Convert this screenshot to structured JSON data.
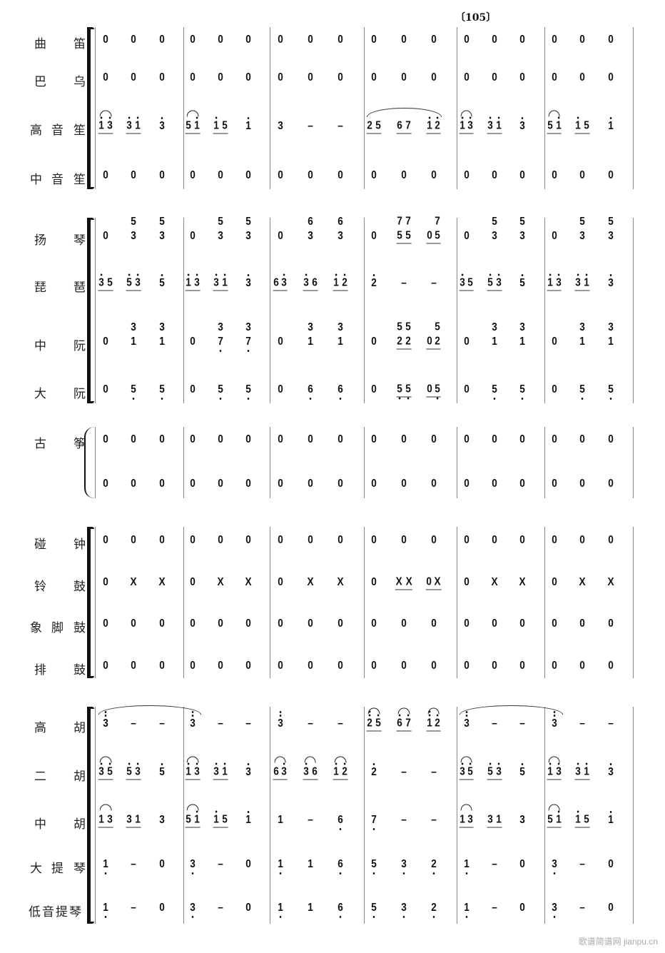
{
  "rehearsal_mark": "〔105〕",
  "watermark": "歌谱简谱网 jianpu.cn",
  "groups": [
    {
      "type": "bracket",
      "rows": [
        0,
        1,
        2,
        3
      ]
    },
    {
      "type": "bracket",
      "rows": [
        4,
        5,
        6,
        7
      ]
    },
    {
      "type": "brace",
      "rows": [
        8,
        9
      ]
    },
    {
      "type": "bracket",
      "rows": [
        10,
        11,
        12,
        13
      ]
    },
    {
      "type": "bracket",
      "rows": [
        14,
        15,
        16,
        17,
        18
      ]
    }
  ],
  "rows": [
    {
      "name": "曲笛",
      "measures": [
        "0 0 0",
        "0 0 0",
        "0 0 0",
        "0 0 0",
        "0 0 0",
        "0 0 0"
      ]
    },
    {
      "name": "巴乌",
      "measures": [
        "0 0 0",
        "0 0 0",
        "0 0 0",
        "0 0 0",
        "0 0 0",
        "0 0 0"
      ]
    },
    {
      "name": "高音笙",
      "measures": [
        "~1'3' 3'1' 3'",
        "~51' 1'5 1'",
        "3 - -",
        "25 67 1'2'",
        "~1'3' 3'1' 3'",
        "~51' 1'5 1'"
      ],
      "slurs": [
        [
          3,
          0,
          3,
          2
        ]
      ]
    },
    {
      "name": "中音笙",
      "measures": [
        "0 0 0",
        "0 0 0",
        "0 0 0",
        "0 0 0",
        "0 0 0",
        "0 0 0"
      ]
    },
    {
      "name": "扬琴",
      "measures": [
        "0 3^5 3^5",
        "0 3^5 3^5",
        "0 3^6 3^6",
        "0 5^75^7 05^7",
        "0 3^5 3^5",
        "0 3^5 3^5"
      ]
    },
    {
      "name": "琵琶",
      "measures": [
        "3'5 5'3' 5'",
        "1'3' 3'1' 3'",
        "63' 3'6 1'2'",
        "2' - -",
        "3'5 5'3' 5'",
        "1'3' 3'1' 3'"
      ]
    },
    {
      "name": "中阮",
      "measures": [
        "0 1^3 1^3",
        "0 7,^3 7,^3",
        "0 1^3 1^3",
        "0 2^52^5 02^5",
        "0 1^3 1^3",
        "0 1^3 1^3"
      ]
    },
    {
      "name": "大阮",
      "measures": [
        "0 5, 5,",
        "0 5, 5,",
        "0 6, 6,",
        "0 5,5, 05,",
        "0 5, 5,",
        "0 5, 5,"
      ]
    },
    {
      "name": "古筝",
      "measures": [
        "0 0 0",
        "0 0 0",
        "0 0 0",
        "0 0 0",
        "0 0 0",
        "0 0 0"
      ]
    },
    {
      "name": "",
      "measures": [
        "0 0 0",
        "0 0 0",
        "0 0 0",
        "0 0 0",
        "0 0 0",
        "0 0 0"
      ]
    },
    {
      "name": "碰钟",
      "measures": [
        "0 0 0",
        "0 0 0",
        "0 0 0",
        "0 0 0",
        "0 0 0",
        "0 0 0"
      ]
    },
    {
      "name": "铃鼓",
      "measures": [
        "0 X X",
        "0 X X",
        "0 X X",
        "0 XX 0X",
        "0 X X",
        "0 X X"
      ]
    },
    {
      "name": "象脚鼓",
      "measures": [
        "0 0 0",
        "0 0 0",
        "0 0 0",
        "0 0 0",
        "0 0 0",
        "0 0 0"
      ]
    },
    {
      "name": "排鼓",
      "measures": [
        "0 0 0",
        "0 0 0",
        "0 0 0",
        "0 0 0",
        "0 0 0",
        "0 0 0"
      ]
    },
    {
      "name": "高胡",
      "measures": [
        "3'' - -",
        "3'' - -",
        "3'' - -",
        "~2''5' ~6'7' ~1''2'",
        "3'' - -",
        "3'' - -"
      ],
      "slurs": [
        [
          0,
          0,
          1,
          0
        ],
        [
          4,
          0,
          5,
          0
        ]
      ]
    },
    {
      "name": "二胡",
      "measures": [
        "~3'5' 5'3' 5'",
        "~1'3' 3'1' 3'",
        "~63' ~3'6 ~1'2'",
        "2' - -",
        "~3'5' 5'3' 5'",
        "~1'3' 3'1' 3'"
      ]
    },
    {
      "name": "中胡",
      "measures": [
        "~13 31 3",
        "~51' 1'5 1'",
        "1 - 6,",
        "7, - -",
        "~13 31 3",
        "~51' 1'5 1'"
      ]
    },
    {
      "name": "大提琴",
      "measures": [
        "1, - 0",
        "3, - 0",
        "1, 1 6,",
        "5, 3, 2,",
        "1, - 0",
        "3, - 0"
      ]
    },
    {
      "name": "低音提琴",
      "measures": [
        "1, - 0",
        "3, - 0",
        "1, 1 6,",
        "5, 3, 2,",
        "1, - 0",
        "3, - 0"
      ]
    }
  ]
}
